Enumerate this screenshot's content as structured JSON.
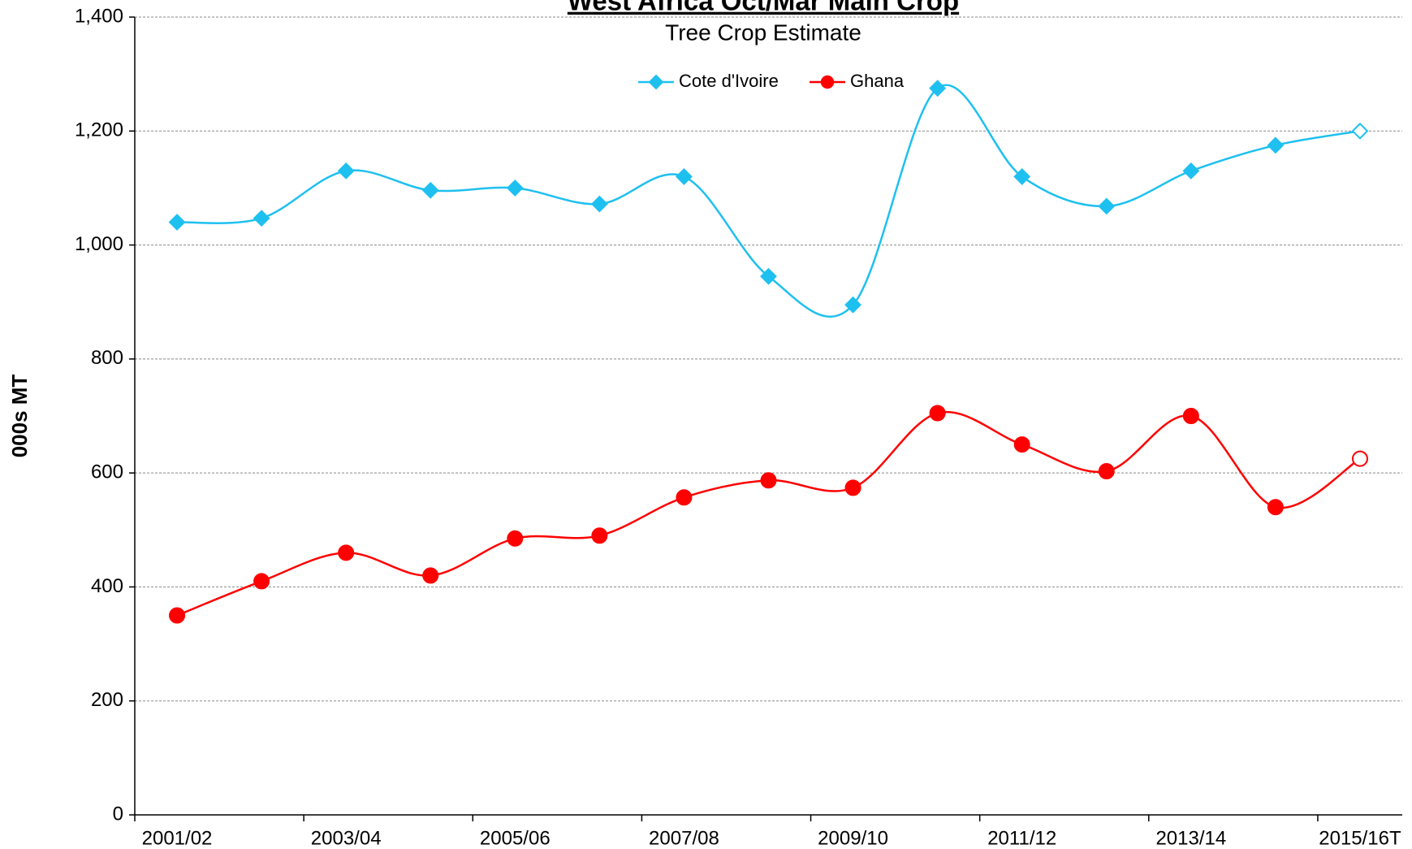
{
  "chart_data": {
    "type": "line",
    "title": "West Africa Oct/Mar Main Crop",
    "subtitle": "Tree Crop Estimate",
    "y_label": "000s MT",
    "categories": [
      "2001/02",
      null,
      "2003/04",
      null,
      "2005/06",
      null,
      "2007/08",
      null,
      "2009/10",
      null,
      "2011/12",
      null,
      "2013/14",
      null,
      "2015/16T"
    ],
    "series": [
      {
        "name": "Cote d'Ivoire",
        "color": "#1ec0f0",
        "marker": "diamond",
        "values": [
          1040,
          1047,
          1130,
          1096,
          1100,
          1072,
          1120,
          945,
          895,
          1275,
          1120,
          1068,
          1130,
          1175,
          1200
        ]
      },
      {
        "name": "Ghana",
        "color": "#ff0000",
        "marker": "circle",
        "values": [
          350,
          410,
          460,
          420,
          485,
          490,
          557,
          587,
          574,
          705,
          650,
          603,
          700,
          540,
          625
        ]
      }
    ],
    "ylim": [
      0,
      1400
    ],
    "yticks": [
      0,
      200,
      400,
      600,
      800,
      {
        "value": 1000,
        "label": "1,000"
      },
      {
        "value": 1200,
        "label": "1,200"
      },
      {
        "value": 1400,
        "label": "1,400"
      }
    ],
    "grid": true,
    "legend": "top"
  }
}
